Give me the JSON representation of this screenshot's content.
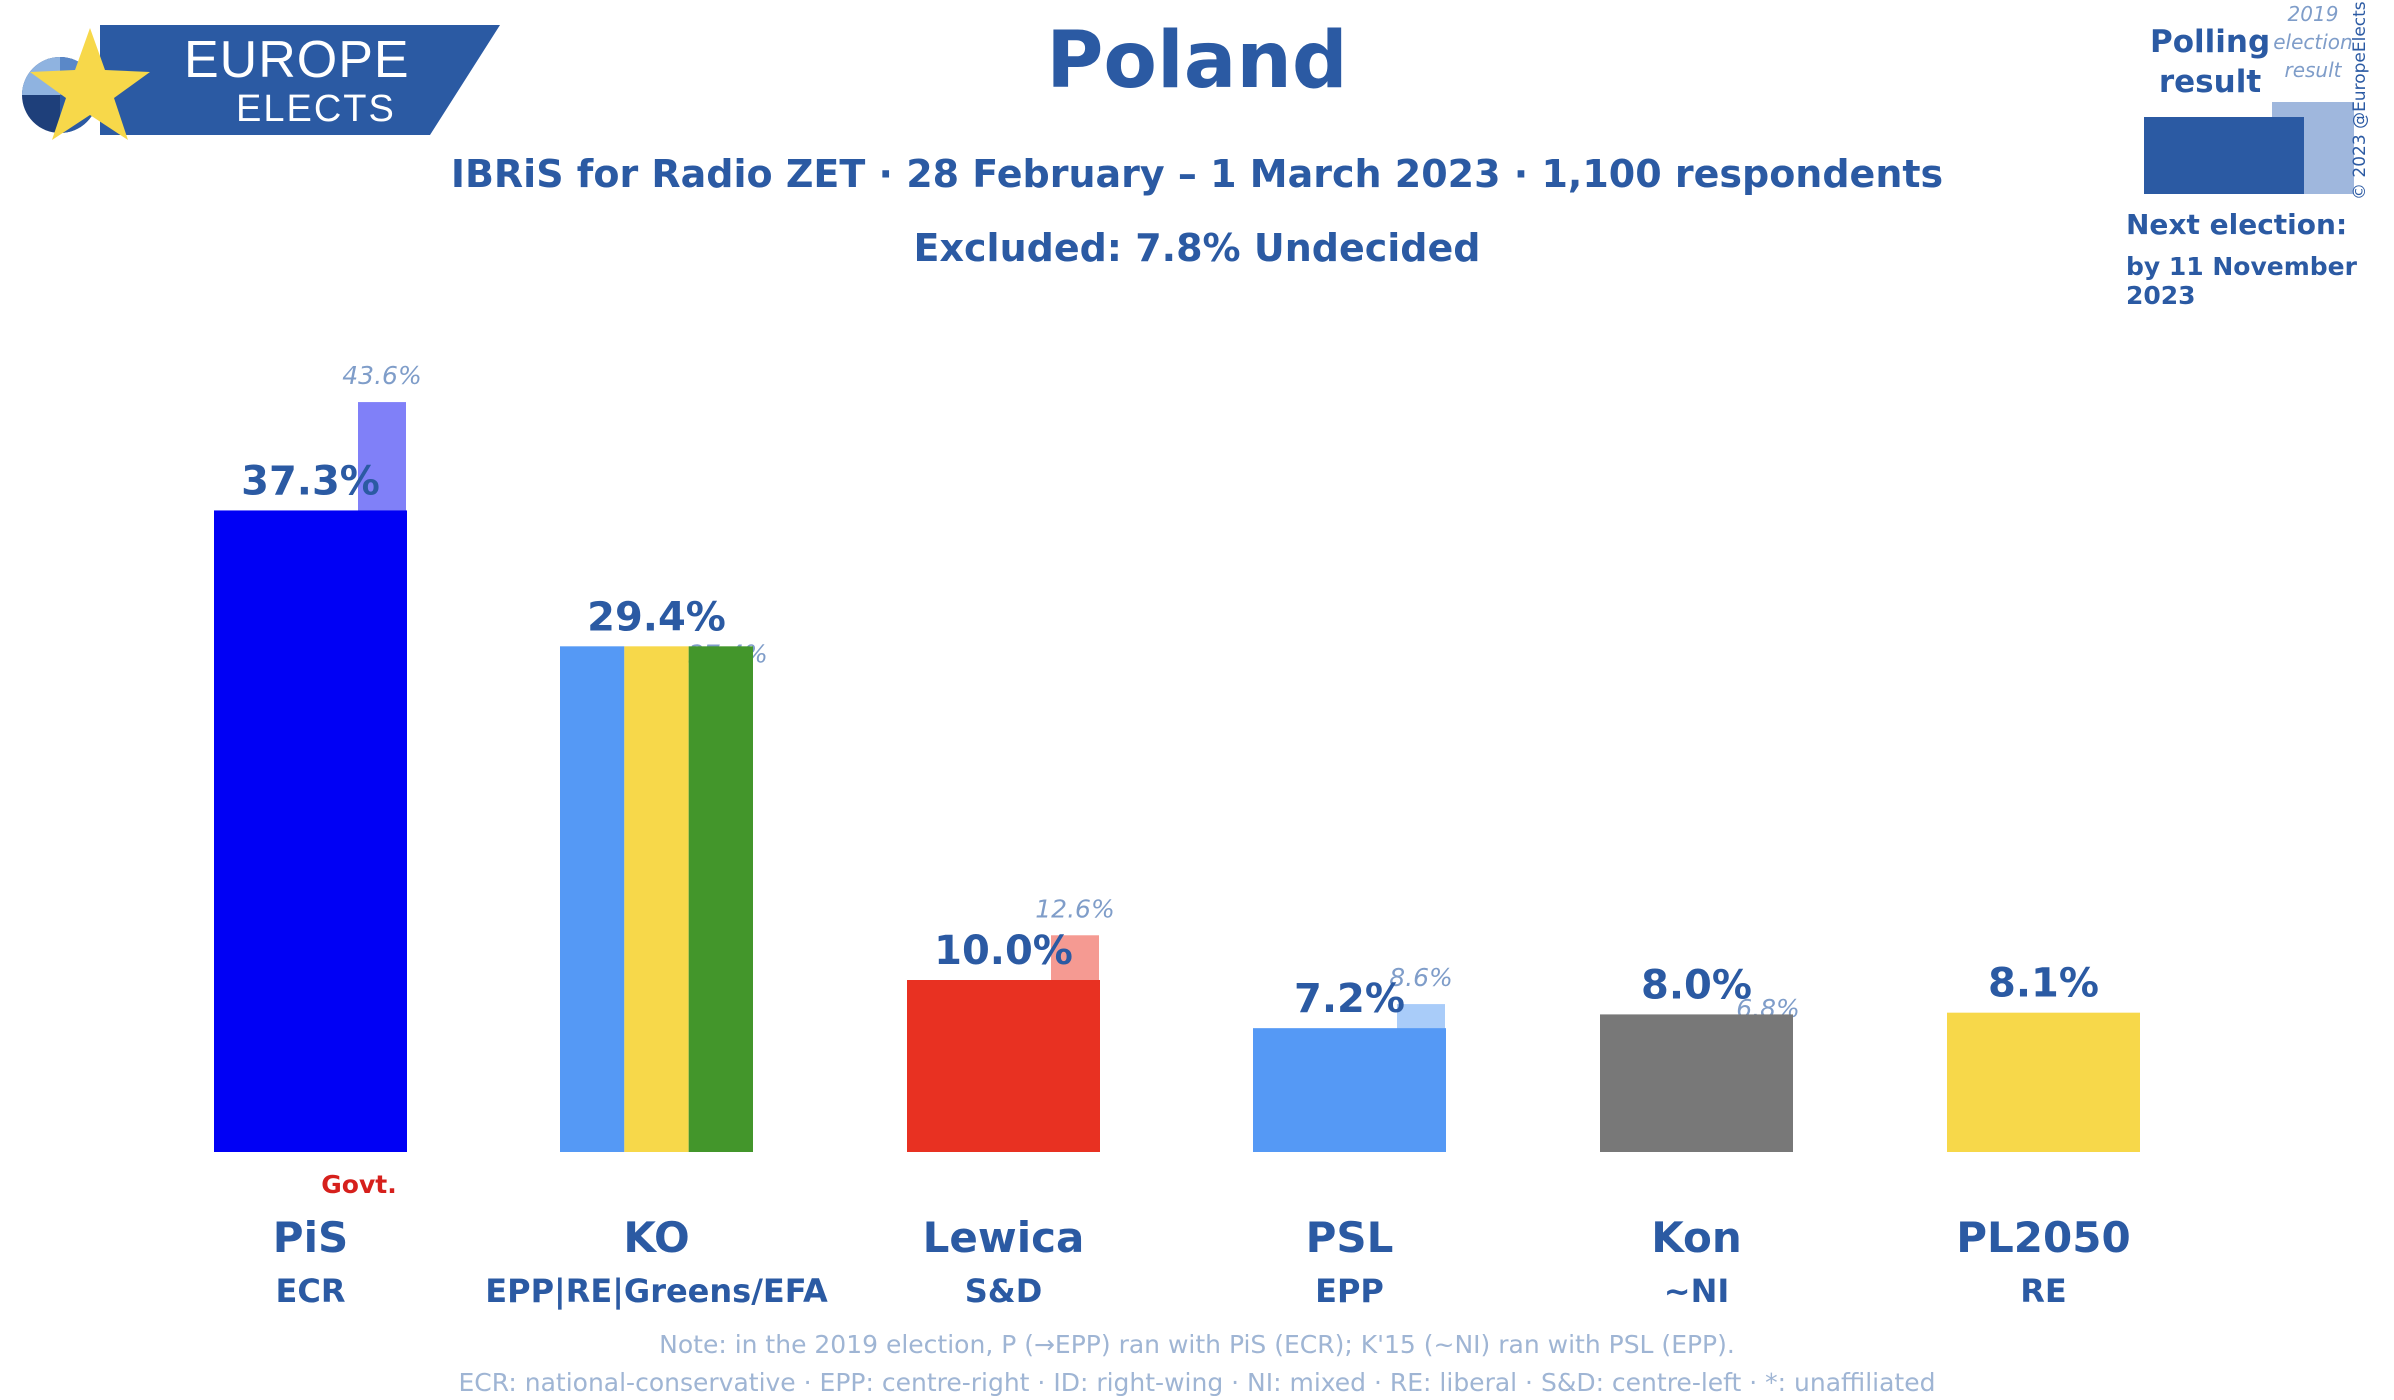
{
  "brand": {
    "line1": "EUROPE",
    "line2": "ELECTS"
  },
  "title": "Poland",
  "subtitle": "IBRiS for Radio ZET · 28 February – 1 March 2023 · 1,100 respondents",
  "excluded": "Excluded: 7.8% Undecided",
  "legend": {
    "polling": "Polling result",
    "previous": "2019 election result",
    "next_label": "Next election:",
    "next_date": "by 11 November 2023",
    "copyright": "© 2023 @EuropeElects"
  },
  "govt_label": "Govt.",
  "colors": {
    "accent": "#2b5aa3",
    "govt": "#d6201c",
    "muted": "#7f9dc9"
  },
  "chart_data": {
    "type": "bar",
    "title": "Poland",
    "ylim": [
      0,
      45
    ],
    "categories": [
      "PiS",
      "KO",
      "Lewica",
      "PSL",
      "Kon",
      "PL2050"
    ],
    "groups": [
      "ECR",
      "EPP|RE|Greens/EFA",
      "S&D",
      "EPP",
      "~NI",
      "RE"
    ],
    "series": [
      {
        "name": "Polling result",
        "values": [
          37.3,
          29.4,
          10.0,
          7.2,
          8.0,
          8.1
        ],
        "labels": [
          "37.3%",
          "29.4%",
          "10.0%",
          "7.2%",
          "8.0%",
          "8.1%"
        ]
      },
      {
        "name": "2019 election result",
        "values": [
          43.6,
          27.4,
          12.6,
          8.6,
          6.8,
          null
        ],
        "labels": [
          "43.6%",
          "27.4%",
          "12.6%",
          "8.6%",
          "6.8%",
          ""
        ]
      }
    ],
    "bar_colors": [
      [
        "#0000f5"
      ],
      [
        "#5599f5",
        "#f7d84a",
        "#43962b"
      ],
      [
        "#e83122"
      ],
      [
        "#5599f5"
      ],
      [
        "#787878"
      ],
      [
        "#f7d84a"
      ]
    ],
    "prev_colors": [
      [
        "#8080f8"
      ],
      [
        "#f9eba0",
        "#a3c995"
      ],
      [
        "#f59a92"
      ],
      [
        "#a9ccf9"
      ],
      [
        "#bbbbbb"
      ],
      []
    ],
    "govt": [
      true,
      false,
      false,
      false,
      false,
      false
    ]
  },
  "notes": [
    "Note: in the 2019 election, P (→EPP) ran with PiS (ECR); K'15 (~NI) ran with PSL (EPP).",
    "ECR: national-conservative · EPP: centre-right · ID: right-wing · NI: mixed · RE: liberal · S&D: centre-left · *: unaffiliated"
  ]
}
